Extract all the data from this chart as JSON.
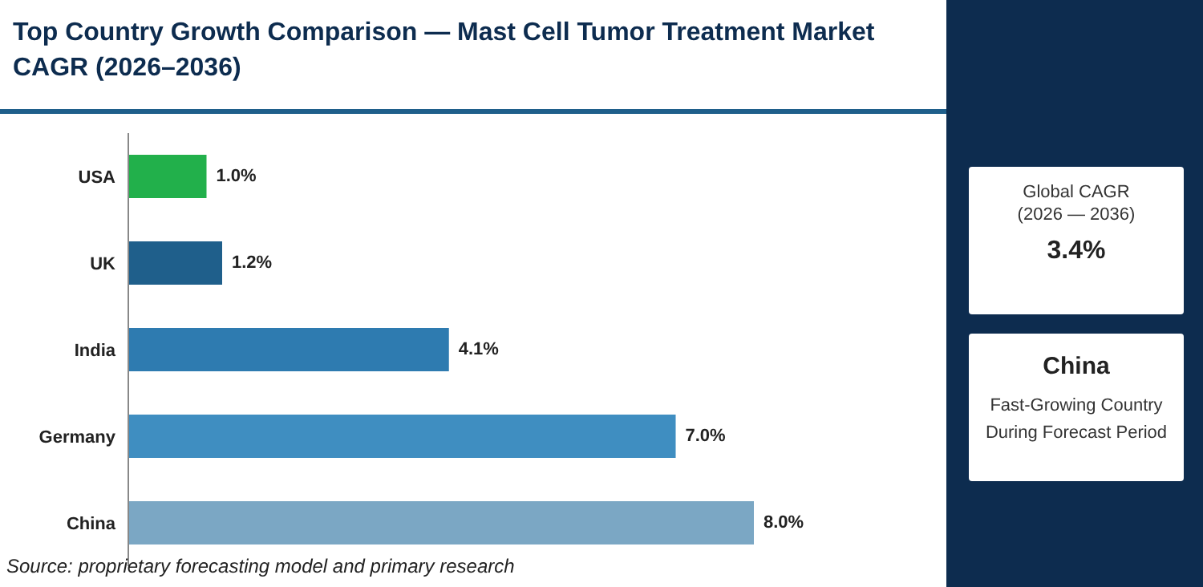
{
  "chart_data": {
    "type": "bar",
    "orientation": "horizontal",
    "title": "Top Country Growth Comparison — Mast Cell Tumor Treatment Market CAGR (2026–2036)",
    "categories": [
      "USA",
      "UK",
      "India",
      "Germany",
      "China"
    ],
    "values": [
      1.0,
      1.2,
      4.1,
      7.0,
      8.0
    ],
    "value_labels": [
      "1.0%",
      "1.2%",
      "4.1%",
      "7.0%",
      "8.0%"
    ],
    "colors": [
      "#22b04b",
      "#1f5f8b",
      "#2e7bb0",
      "#3f8ec1",
      "#7ba7c4"
    ],
    "grid": false,
    "legend": false,
    "annotations": [
      "Source: proprietary forecasting model and primary research",
      "Global CAGR",
      "(2026 — 2036)",
      "3.4%",
      "China",
      "Fast-Growing Country During Forecast Period"
    ]
  }
}
